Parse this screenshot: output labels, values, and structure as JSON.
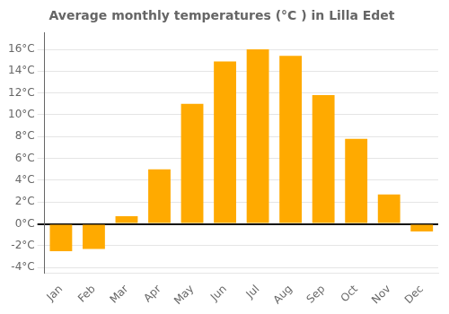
{
  "chart_data": {
    "type": "bar",
    "title": "Average monthly temperatures (°C ) in Lilla Edet",
    "categories": [
      "Jan",
      "Feb",
      "Mar",
      "Apr",
      "May",
      "Jun",
      "Jul",
      "Aug",
      "Sep",
      "Oct",
      "Nov",
      "Dec"
    ],
    "values": [
      -2.5,
      -2.3,
      0.7,
      5.0,
      11.0,
      14.9,
      16.0,
      15.4,
      11.8,
      7.8,
      2.7,
      -0.7
    ],
    "color": "#FFAA00",
    "ylim": [
      -4.5,
      17.5
    ],
    "yticks": [
      {
        "value": -4,
        "label": "-4°C"
      },
      {
        "value": -2,
        "label": "-2°C"
      },
      {
        "value": 0,
        "label": "0°C"
      },
      {
        "value": 2,
        "label": "2°C"
      },
      {
        "value": 4,
        "label": "4°C"
      },
      {
        "value": 6,
        "label": "6°C"
      },
      {
        "value": 8,
        "label": "8°C"
      },
      {
        "value": 10,
        "label": "10°C"
      },
      {
        "value": 12,
        "label": "12°C"
      },
      {
        "value": 14,
        "label": "14°C"
      },
      {
        "value": 16,
        "label": "16°C"
      }
    ],
    "grid": true
  }
}
